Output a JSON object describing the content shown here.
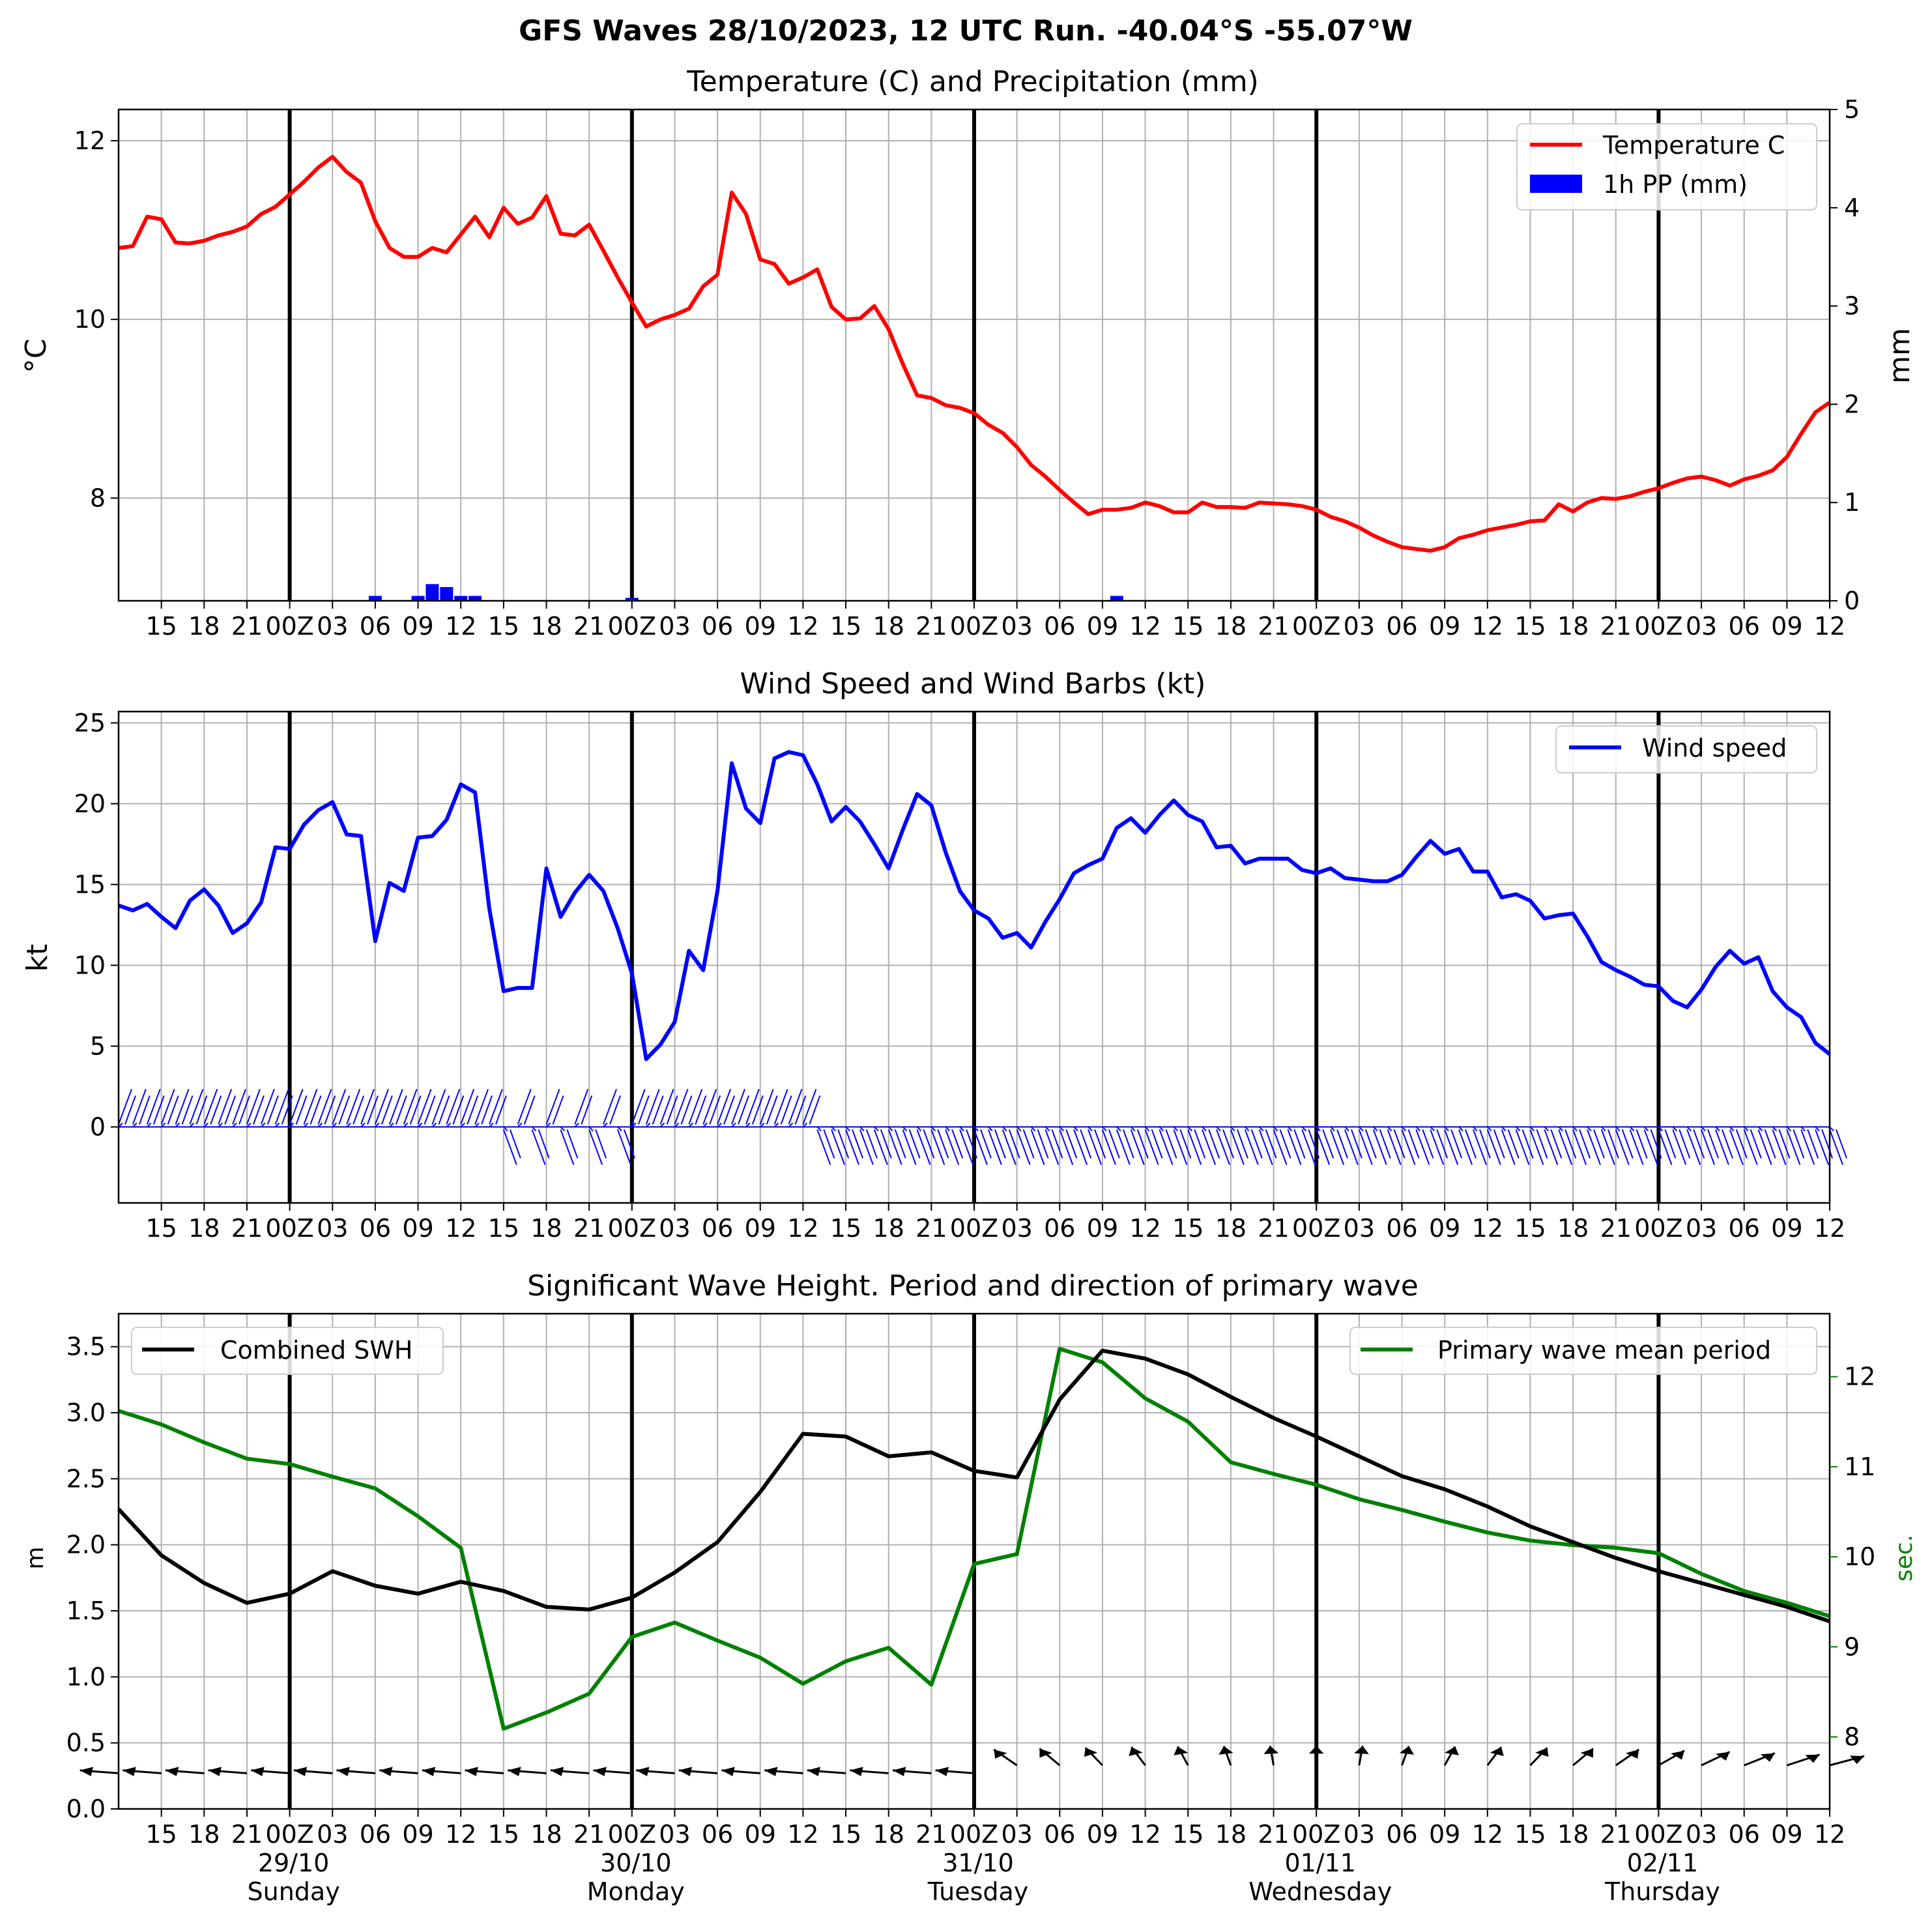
{
  "title": "GFS Waves 28/10/2023, 12 UTC Run. -40.04°S -55.07°W",
  "x_tick_labels": [
    "15",
    "18",
    "21",
    "00Z",
    "03",
    "06",
    "09",
    "12",
    "15",
    "18",
    "21",
    "00Z",
    "03",
    "06",
    "09",
    "12",
    "15",
    "18",
    "21",
    "00Z",
    "03",
    "06",
    "09",
    "12",
    "15",
    "18",
    "21",
    "00Z",
    "03",
    "06",
    "09",
    "12",
    "15",
    "18",
    "21",
    "00Z",
    "03",
    "06",
    "09",
    "12"
  ],
  "day_labels": [
    {
      "date": "29/10",
      "day": "Sunday"
    },
    {
      "date": "30/10",
      "day": "Monday"
    },
    {
      "date": "31/10",
      "day": "Tuesday"
    },
    {
      "date": "01/11",
      "day": "Wednesday"
    },
    {
      "date": "02/11",
      "day": "Thursday"
    }
  ],
  "colors": {
    "temperature": "#ff0000",
    "precip": "#0000ff",
    "wind": "#0000ff",
    "swh": "#000000",
    "period": "#008000",
    "grid": "#b0b0b0"
  },
  "chart_data": [
    {
      "type": "line",
      "title": "Temperature (C) and Precipitation (mm)",
      "x_range_hours": [
        12,
        132
      ],
      "ylabel": "°C",
      "ylabel_right": "mm",
      "ylim": [
        6.85,
        12.35
      ],
      "yticks": [
        8,
        10,
        12
      ],
      "ylim_right": [
        0,
        5
      ],
      "yticks_right": [
        0,
        1,
        2,
        3,
        4,
        5
      ],
      "legend": {
        "position": "top-right",
        "entries": [
          "Temperature C",
          "1h PP (mm)"
        ]
      },
      "series": [
        {
          "name": "Temperature C",
          "x": [
            12,
            13,
            14,
            15,
            16,
            17,
            18,
            19,
            20,
            21,
            22,
            23,
            24,
            25,
            26,
            27,
            28,
            29,
            30,
            31,
            32,
            33,
            34,
            35,
            36,
            37,
            38,
            39,
            40,
            41,
            42,
            43,
            44,
            45,
            46,
            47,
            48,
            49,
            50,
            51,
            52,
            53,
            54,
            55,
            56,
            57,
            58,
            59,
            60,
            61,
            62,
            63,
            64,
            65,
            66,
            67,
            68,
            69,
            70,
            71,
            72,
            73,
            74,
            75,
            76,
            77,
            78,
            79,
            80,
            81,
            82,
            83,
            84,
            85,
            86,
            87,
            88,
            89,
            90,
            91,
            92,
            93,
            94,
            95,
            96,
            97,
            98,
            99,
            100,
            101,
            102,
            103,
            104,
            105,
            106,
            107,
            108,
            109,
            110,
            111,
            112,
            113,
            114,
            115,
            116,
            117,
            118,
            119,
            120,
            121,
            122,
            123,
            124,
            125,
            126,
            127,
            128,
            129,
            130,
            131,
            132
          ],
          "y": [
            10.8,
            10.82,
            11.15,
            11.12,
            10.86,
            10.85,
            10.88,
            10.94,
            10.98,
            11.04,
            11.18,
            11.26,
            11.4,
            11.54,
            11.7,
            11.82,
            11.65,
            11.53,
            11.1,
            10.8,
            10.7,
            10.7,
            10.8,
            10.75,
            10.95,
            11.15,
            10.92,
            11.25,
            11.07,
            11.14,
            11.38,
            10.96,
            10.94,
            11.06,
            10.77,
            10.47,
            10.19,
            9.92,
            10.0,
            10.05,
            10.12,
            10.37,
            10.5,
            11.42,
            11.18,
            10.67,
            10.62,
            10.4,
            10.47,
            10.56,
            10.14,
            10.0,
            10.01,
            10.15,
            9.89,
            9.5,
            9.15,
            9.12,
            9.04,
            9.01,
            8.95,
            8.82,
            8.73,
            8.57,
            8.37,
            8.24,
            8.09,
            7.95,
            7.82,
            7.87,
            7.87,
            7.89,
            7.95,
            7.91,
            7.84,
            7.84,
            7.95,
            7.9,
            7.9,
            7.89,
            7.95,
            7.94,
            7.93,
            7.91,
            7.87,
            7.79,
            7.74,
            7.67,
            7.58,
            7.51,
            7.45,
            7.43,
            7.41,
            7.45,
            7.55,
            7.59,
            7.64,
            7.67,
            7.7,
            7.74,
            7.75,
            7.93,
            7.85,
            7.95,
            8.0,
            7.99,
            8.02,
            8.07,
            8.11,
            8.17,
            8.22,
            8.24,
            8.2,
            8.14,
            8.21,
            8.25,
            8.31,
            8.46,
            8.72,
            8.96,
            9.07
          ]
        },
        {
          "name": "1h PP (mm)",
          "type": "bar",
          "x": [
            30,
            33,
            34,
            35,
            36,
            37,
            48,
            82
          ],
          "y": [
            0.05,
            0.05,
            0.17,
            0.14,
            0.05,
            0.05,
            0.03,
            0.05
          ]
        }
      ]
    },
    {
      "type": "line",
      "title": "Wind Speed and Wind Barbs (kt)",
      "x_range_hours": [
        12,
        132
      ],
      "ylabel": "kt",
      "ylim": [
        -4.7,
        25.7
      ],
      "yticks": [
        0,
        5,
        10,
        15,
        20,
        25
      ],
      "legend": {
        "position": "top-right",
        "entries": [
          "Wind speed"
        ]
      },
      "barbs_row_value": 0,
      "series": [
        {
          "name": "Wind speed",
          "x": [
            12,
            13,
            14,
            15,
            16,
            17,
            18,
            19,
            20,
            21,
            22,
            23,
            24,
            25,
            26,
            27,
            28,
            29,
            30,
            31,
            32,
            33,
            34,
            35,
            36,
            37,
            38,
            39,
            40,
            41,
            42,
            43,
            44,
            45,
            46,
            47,
            48,
            49,
            50,
            51,
            52,
            53,
            54,
            55,
            56,
            57,
            58,
            59,
            60,
            61,
            62,
            63,
            64,
            65,
            66,
            67,
            68,
            69,
            70,
            71,
            72,
            73,
            74,
            75,
            76,
            77,
            78,
            79,
            80,
            81,
            82,
            83,
            84,
            85,
            86,
            87,
            88,
            89,
            90,
            91,
            92,
            93,
            94,
            95,
            96,
            97,
            98,
            99,
            100,
            101,
            102,
            103,
            104,
            105,
            106,
            107,
            108,
            109,
            110,
            111,
            112,
            113,
            114,
            115,
            116,
            117,
            118,
            119,
            120,
            121,
            122,
            123,
            124,
            125,
            126,
            127,
            128,
            129,
            130,
            131,
            132
          ],
          "y": [
            13.7,
            13.4,
            13.8,
            13.0,
            12.3,
            14.0,
            14.7,
            13.7,
            12.0,
            12.6,
            13.9,
            17.3,
            17.2,
            18.7,
            19.6,
            20.1,
            18.1,
            18.0,
            11.5,
            15.1,
            14.6,
            17.9,
            18.0,
            19.0,
            21.2,
            20.7,
            13.5,
            8.4,
            8.6,
            8.6,
            16.0,
            13.0,
            14.5,
            15.6,
            14.6,
            12.3,
            9.5,
            4.2,
            5.1,
            6.5,
            10.9,
            9.7,
            14.6,
            22.5,
            19.7,
            18.8,
            22.8,
            23.2,
            23.0,
            21.2,
            18.9,
            19.8,
            18.9,
            17.5,
            16.0,
            18.4,
            20.6,
            19.9,
            17.0,
            14.6,
            13.4,
            12.9,
            11.7,
            12.0,
            11.1,
            12.7,
            14.1,
            15.7,
            16.2,
            16.6,
            18.5,
            19.1,
            18.2,
            19.3,
            20.2,
            19.3,
            18.9,
            17.3,
            17.4,
            16.3,
            16.6,
            16.6,
            16.6,
            15.9,
            15.7,
            16.0,
            15.4,
            15.3,
            15.2,
            15.2,
            15.6,
            16.7,
            17.7,
            16.9,
            17.2,
            15.8,
            15.8,
            14.2,
            14.4,
            14.0,
            12.9,
            13.1,
            13.2,
            11.8,
            10.2,
            9.7,
            9.3,
            8.8,
            8.7,
            7.8,
            7.4,
            8.5,
            9.9,
            10.9,
            10.1,
            10.5,
            8.4,
            7.4,
            6.8,
            5.2,
            4.5
          ]
        }
      ]
    },
    {
      "type": "line",
      "title": "Significant Wave Height. Period and direction of primary wave",
      "x_range_hours": [
        12,
        132
      ],
      "ylabel": "m",
      "ylabel_right": "sec.",
      "ylim": [
        0,
        3.75
      ],
      "yticks": [
        0.0,
        0.5,
        1.0,
        1.5,
        2.0,
        2.5,
        3.0,
        3.5
      ],
      "ylim_right": [
        7.2,
        12.7
      ],
      "yticks_right": [
        8,
        9,
        10,
        11,
        12
      ],
      "legend": [
        {
          "position": "top-left",
          "entries": [
            "Combined SWH"
          ]
        },
        {
          "position": "top-right",
          "entries": [
            "Primary wave mean period"
          ]
        }
      ],
      "series": [
        {
          "name": "Combined SWH",
          "x": [
            12,
            15,
            18,
            21,
            24,
            27,
            30,
            33,
            36,
            39,
            42,
            45,
            48,
            51,
            54,
            57,
            60,
            63,
            66,
            69,
            72,
            75,
            78,
            81,
            84,
            87,
            90,
            93,
            96,
            99,
            102,
            105,
            108,
            111,
            114,
            117,
            120,
            123,
            126,
            129,
            132
          ],
          "y": [
            2.27,
            1.92,
            1.71,
            1.56,
            1.63,
            1.8,
            1.69,
            1.63,
            1.72,
            1.65,
            1.53,
            1.51,
            1.6,
            1.79,
            2.02,
            2.4,
            2.84,
            2.82,
            2.67,
            2.7,
            2.56,
            2.51,
            3.1,
            3.47,
            3.41,
            3.29,
            3.12,
            2.96,
            2.82,
            2.67,
            2.52,
            2.42,
            2.29,
            2.14,
            2.02,
            1.9,
            1.8,
            1.71,
            1.62,
            1.53,
            1.42
          ]
        },
        {
          "name": "Primary wave mean period",
          "x": [
            12,
            15,
            18,
            21,
            24,
            27,
            30,
            33,
            36,
            39,
            42,
            45,
            48,
            51,
            54,
            57,
            60,
            63,
            66,
            69,
            72,
            75,
            78,
            81,
            84,
            87,
            90,
            93,
            96,
            99,
            102,
            105,
            108,
            111,
            114,
            117,
            120,
            123,
            126,
            129,
            132
          ],
          "y": [
            11.62,
            11.47,
            11.27,
            11.09,
            11.03,
            10.89,
            10.76,
            10.45,
            10.1,
            8.09,
            8.27,
            8.48,
            9.11,
            9.27,
            9.07,
            8.88,
            8.59,
            8.84,
            8.99,
            8.58,
            9.92,
            10.03,
            12.31,
            12.16,
            11.76,
            11.5,
            11.05,
            10.92,
            10.8,
            10.64,
            10.52,
            10.39,
            10.27,
            10.18,
            10.13,
            10.1,
            10.04,
            9.81,
            9.62,
            9.49,
            9.34
          ]
        }
      ]
    }
  ]
}
